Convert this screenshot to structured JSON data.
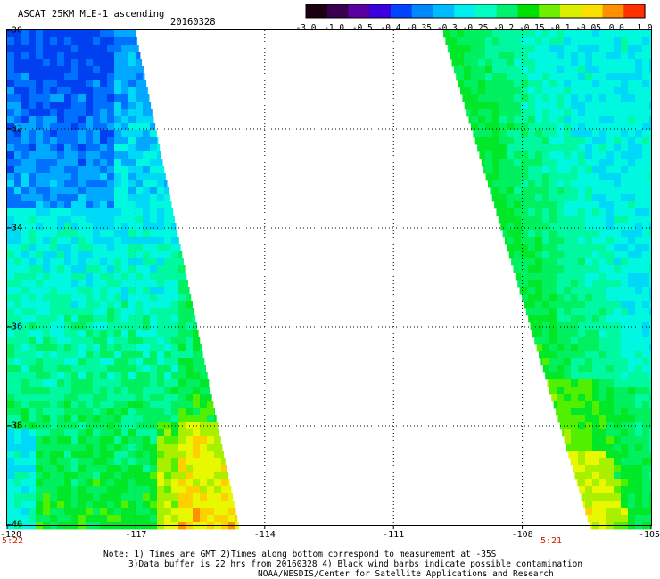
{
  "header": {
    "title": "ASCAT 25KM MLE-1 ascending",
    "date": "20160328"
  },
  "colorbar": {
    "labels": [
      "-3.0",
      "-1.0",
      "-0.5",
      "-0.4",
      "-0.35",
      "-0.3",
      "-0.25",
      "-0.2",
      "-0.15",
      "-0.1",
      "-0.05",
      "0.0",
      "1.0"
    ],
    "colors": [
      "#1a0010",
      "#3a0050",
      "#5a00a0",
      "#3a00e0",
      "#0044ff",
      "#0088ff",
      "#00bbff",
      "#00eeee",
      "#00ffc0",
      "#00f070",
      "#00e000",
      "#70f000",
      "#d8f000",
      "#f8e000",
      "#ff9000",
      "#ff3000"
    ]
  },
  "axes": {
    "x_ticks": [
      "-120",
      "-117",
      "-114",
      "-111",
      "-108",
      "-105"
    ],
    "y_ticks": [
      "-30",
      "-32",
      "-34",
      "-36",
      "-38",
      "-40"
    ],
    "x_range": [
      -120,
      -105
    ],
    "y_range": [
      -30,
      -40
    ]
  },
  "pass_times": {
    "left": "5:22",
    "right": "5:21"
  },
  "notes": {
    "line1": "Note: 1) Times are GMT 2)Times along bottom correspond to measurement at -35S",
    "line2": "3)Data buffer is 22 hrs from 20160328 4) Black wind barbs indicate possible contamination",
    "line3": "NOAA/NESDIS/Center for Satellite Applications and Research"
  }
}
